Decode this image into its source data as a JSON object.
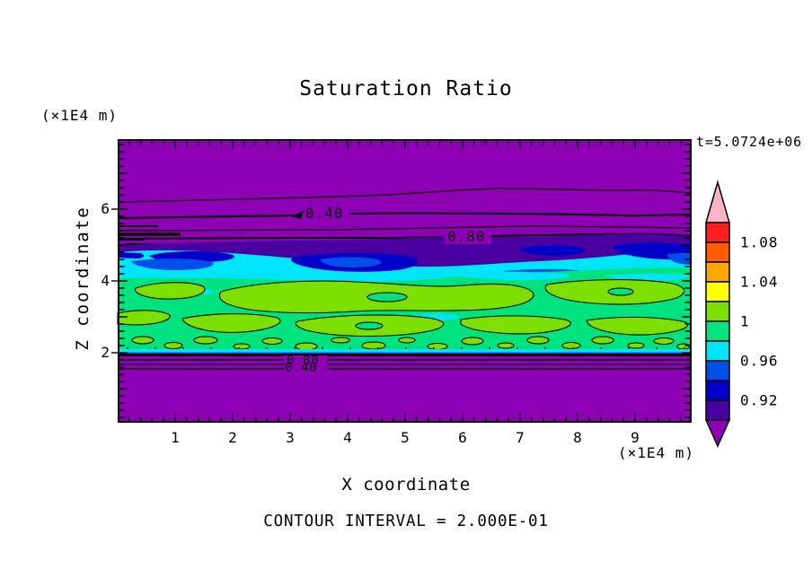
{
  "title": "Saturation Ratio",
  "time_label": "t=5.0724e+06",
  "contour_interval_label": "CONTOUR INTERVAL = 2.000E-01",
  "axes": {
    "x": {
      "label": "X coordinate",
      "unit": "(×1E4 m)",
      "tick_labels": [
        "1",
        "2",
        "3",
        "4",
        "5",
        "6",
        "7",
        "8",
        "9"
      ],
      "tick_values": [
        1,
        2,
        3,
        4,
        5,
        6,
        7,
        8,
        9
      ],
      "minor_step": 0.2,
      "range": [
        0,
        10
      ]
    },
    "z": {
      "label": "Z coordinate",
      "unit": "(×1E4 m)",
      "tick_labels": [
        "2",
        "4",
        "6"
      ],
      "tick_values": [
        2,
        4,
        6
      ],
      "minor_step": 0.2,
      "range": [
        0,
        8
      ]
    }
  },
  "contour_labels": {
    "upper_040": "0.40",
    "upper_080": "0.80",
    "lower_080": "0.80",
    "lower_040": "0.40"
  },
  "colorbar": {
    "tick_labels": [
      {
        "text": "1.08",
        "boundary_index": 1
      },
      {
        "text": "1.04",
        "boundary_index": 3
      },
      {
        "text": "1",
        "boundary_index": 5
      },
      {
        "text": "0.96",
        "boundary_index": 7
      },
      {
        "text": "0.92",
        "boundary_index": 9
      }
    ],
    "segment_colors": [
      "#FF1E1E",
      "#FF5C00",
      "#FFA600",
      "#FFFF00",
      "#7DDF00",
      "#00E27E",
      "#00E4F8",
      "#0050E8",
      "#0000C8",
      "#4A00A0"
    ],
    "arrow_top_color": "#FFB4C6",
    "arrow_bottom_color": "#8E00B4"
  },
  "colors": {
    "purple": "#8E00B4",
    "indigo": "#4A00A0",
    "navy": "#0000C8",
    "blue": "#0050E8",
    "cyan": "#00E4F8",
    "springgreen": "#00E27E",
    "chartreuse": "#7DDF00",
    "yellow": "#FFFF00",
    "orange": "#FFA600",
    "orangered": "#FF5C00",
    "red": "#FF1E1E",
    "pink": "#FFB4C6",
    "ink": "#000000",
    "paper": "#FFFFFF"
  },
  "chart_data": {
    "type": "heatmap",
    "subtype": "filled-contour",
    "title": "Saturation Ratio",
    "xlabel": "X coordinate",
    "x_unit": "×1E4 m",
    "ylabel": "Z coordinate",
    "y_unit": "×1E4 m",
    "xlim": [
      0,
      10
    ],
    "ylim": [
      0,
      8
    ],
    "xticks": [
      1,
      2,
      3,
      4,
      5,
      6,
      7,
      8,
      9
    ],
    "yticks": [
      2,
      4,
      6
    ],
    "grid": false,
    "time_annotation": "t=5.0724e+06",
    "contour_interval": 0.2,
    "colorbar_position": "right",
    "colorbar_boundary_values": [
      0.9,
      0.92,
      0.94,
      0.96,
      0.98,
      1.0,
      1.02,
      1.04,
      1.06,
      1.08,
      1.1
    ],
    "colorbar_labeled_values": [
      1.08,
      1.04,
      1.0,
      0.96,
      0.92
    ],
    "labeled_contour_lines": [
      {
        "value": 0.4,
        "x": 3.7,
        "z": 5.75
      },
      {
        "value": 0.8,
        "x": 6.1,
        "z": 5.1
      },
      {
        "value": 0.8,
        "x": 3.2,
        "z": 1.85
      },
      {
        "value": 0.4,
        "x": 3.2,
        "z": 1.6
      }
    ],
    "horizontal_bands": [
      {
        "z_from": 5.6,
        "z_to": 7.95,
        "saturation": "< 0.20",
        "fill": "purple"
      },
      {
        "z_from": 5.1,
        "z_to": 5.6,
        "saturation": "0.20 - 0.90, thin stacked contours 0.20/0.40/0.60/0.80",
        "fill": "purple"
      },
      {
        "z_from": 4.5,
        "z_to": 5.2,
        "saturation": "0.90 - 0.96 transition band",
        "fill": "indigo/navy/blue"
      },
      {
        "z_from": 3.9,
        "z_to": 4.8,
        "saturation": "0.96 - 0.98 band",
        "fill": "cyan"
      },
      {
        "z_from": 2.0,
        "z_to": 4.3,
        "saturation": "0.98 - 1.02 mottled near-saturated zone",
        "fill": "springgreen/chartreuse with cyan patches"
      },
      {
        "z_from": 1.55,
        "z_to": 2.0,
        "saturation": "0.90 down to 0.20, tightly stacked contours",
        "fill": "purple"
      },
      {
        "z_from": 0.0,
        "z_to": 1.55,
        "saturation": "< 0.20",
        "fill": "purple"
      }
    ]
  }
}
